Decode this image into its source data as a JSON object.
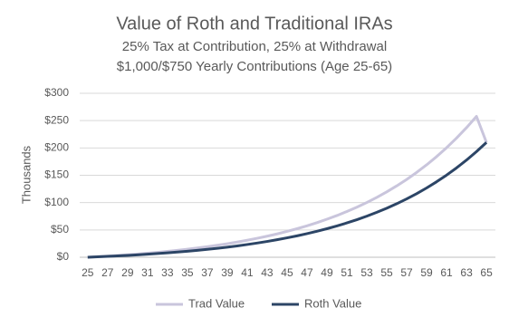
{
  "chart_data": {
    "type": "line",
    "title": "Value of Roth and Traditional IRAs",
    "subtitle": [
      "25% Tax at Contribution, 25% at Withdrawal",
      "$1,000/$750 Yearly Contributions (Age 25-65)"
    ],
    "y_label": "Thousands",
    "x": [
      25,
      26,
      27,
      28,
      29,
      30,
      31,
      32,
      33,
      34,
      35,
      36,
      37,
      38,
      39,
      40,
      41,
      42,
      43,
      44,
      45,
      46,
      47,
      48,
      49,
      50,
      51,
      52,
      53,
      54,
      55,
      56,
      57,
      58,
      59,
      60,
      61,
      62,
      63,
      64,
      65
    ],
    "series": [
      {
        "name": "Trad Value",
        "color": "#c9c5dc",
        "values": [
          0,
          1.0,
          2.1,
          3.3,
          4.5,
          5.9,
          7.4,
          9.0,
          10.7,
          12.6,
          14.7,
          16.9,
          19.3,
          21.9,
          24.7,
          27.8,
          31.1,
          34.7,
          38.5,
          42.7,
          47.3,
          52.2,
          57.5,
          63.3,
          69.6,
          76.3,
          83.7,
          91.6,
          100.2,
          109.5,
          119.6,
          130.6,
          142.4,
          155.2,
          169.1,
          184.1,
          200.4,
          218.0,
          237.1,
          257.7,
          210.1
        ]
      },
      {
        "name": "Roth Value",
        "color": "#2c4566",
        "values": [
          0,
          0.8,
          1.6,
          2.4,
          3.4,
          4.4,
          5.5,
          6.8,
          8.1,
          9.5,
          11.0,
          12.7,
          14.5,
          16.4,
          18.5,
          20.8,
          23.3,
          26.0,
          28.9,
          32.1,
          35.5,
          39.2,
          43.2,
          47.5,
          52.2,
          57.3,
          62.8,
          68.7,
          75.2,
          82.2,
          89.7,
          97.9,
          106.8,
          116.4,
          126.8,
          138.1,
          150.3,
          163.5,
          177.8,
          193.3,
          210.1
        ]
      }
    ],
    "xlim": [
      24.2,
      65.9
    ],
    "xticks": [
      25,
      27,
      29,
      31,
      33,
      35,
      37,
      39,
      41,
      43,
      45,
      47,
      49,
      51,
      53,
      55,
      57,
      59,
      61,
      63,
      65
    ],
    "ylim": [
      0,
      300
    ],
    "yticks": [
      {
        "value": 0,
        "label": "$0"
      },
      {
        "value": 50,
        "label": "$50"
      },
      {
        "value": 100,
        "label": "$100"
      },
      {
        "value": 150,
        "label": "$150"
      },
      {
        "value": 200,
        "label": "$200"
      },
      {
        "value": 250,
        "label": "$250"
      },
      {
        "value": 300,
        "label": "$300"
      }
    ],
    "grid": true,
    "legend": "bottom"
  }
}
